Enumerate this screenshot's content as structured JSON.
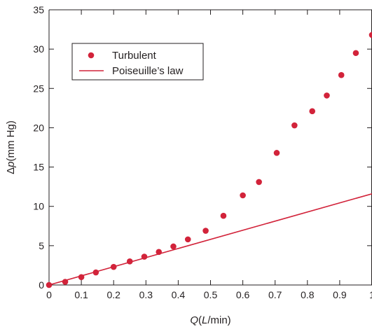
{
  "chart_data": {
    "type": "scatter",
    "title": "",
    "xlabel": "Q(L/min)",
    "xlabel_parts": [
      {
        "text": "Q",
        "italic": true
      },
      {
        "text": "(",
        "italic": false
      },
      {
        "text": "L",
        "italic": true
      },
      {
        "text": "/min)",
        "italic": false
      }
    ],
    "ylabel": "Δp(mm Hg)",
    "ylabel_parts": [
      {
        "text": "Δ",
        "italic": false
      },
      {
        "text": "p",
        "italic": true
      },
      {
        "text": "(mm Hg)",
        "italic": false
      }
    ],
    "xlim": [
      0,
      1
    ],
    "ylim": [
      0,
      35
    ],
    "x_ticks": [
      0,
      0.1,
      0.2,
      0.3,
      0.4,
      0.5,
      0.6,
      0.7,
      0.8,
      0.9,
      1
    ],
    "x_tick_labels": [
      "0",
      "0.1",
      "0.2",
      "0.3",
      "0.4",
      "0.5",
      "0.6",
      "0.7",
      "0.8",
      "0.9",
      "1"
    ],
    "y_ticks": [
      0,
      5,
      10,
      15,
      20,
      25,
      30,
      35
    ],
    "y_tick_labels": [
      "0",
      "5",
      "10",
      "15",
      "20",
      "25",
      "30",
      "35"
    ],
    "grid": false,
    "legend_position": "top-left",
    "color": "#d2233a",
    "series": [
      {
        "name": "Turbulent",
        "kind": "scatter",
        "x": [
          0,
          0.05,
          0.1,
          0.145,
          0.2,
          0.25,
          0.295,
          0.34,
          0.385,
          0.43,
          0.485,
          0.54,
          0.6,
          0.65,
          0.705,
          0.76,
          0.815,
          0.86,
          0.905,
          0.95,
          1
        ],
        "y": [
          0,
          0.4,
          1.0,
          1.6,
          2.3,
          3.0,
          3.6,
          4.2,
          4.9,
          5.8,
          6.9,
          8.8,
          11.4,
          13.1,
          16.8,
          20.3,
          22.1,
          24.1,
          26.7,
          29.5,
          31.8
        ]
      },
      {
        "name": "Poiseuille’s law",
        "kind": "line",
        "x": [
          0,
          1
        ],
        "y": [
          0,
          11.6
        ]
      }
    ]
  }
}
